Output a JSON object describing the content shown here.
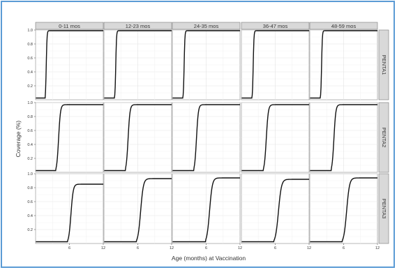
{
  "chart_data": {
    "type": "line",
    "xlabel": "Age (months) at Vaccination",
    "ylabel": "Coverage (%)",
    "x_ticks": [
      "6",
      "12"
    ],
    "y_ticks": [
      "0.2",
      "0.4",
      "0.6",
      "0.8",
      "1.0"
    ],
    "xlim": [
      0,
      12
    ],
    "ylim": [
      0,
      1.0
    ],
    "grid": true,
    "column_facets": [
      "0-11 mos",
      "12-23 mos",
      "24-35 mos",
      "36-47 mos",
      "48-59 mos"
    ],
    "row_facets": [
      "PENTA1",
      "PENTA2",
      "PENTA3"
    ],
    "panels": [
      [
        {
          "onset": 1.7,
          "plateau": 0.99,
          "span": 0.6
        },
        {
          "onset": 1.9,
          "plateau": 0.99,
          "span": 0.6
        },
        {
          "onset": 1.9,
          "plateau": 0.99,
          "span": 0.6
        },
        {
          "onset": 1.9,
          "plateau": 0.99,
          "span": 0.6
        },
        {
          "onset": 1.9,
          "plateau": 0.99,
          "span": 0.6
        }
      ],
      [
        {
          "onset": 3.6,
          "plateau": 0.97,
          "span": 1.5
        },
        {
          "onset": 3.8,
          "plateau": 0.97,
          "span": 1.5
        },
        {
          "onset": 3.8,
          "plateau": 0.97,
          "span": 1.5
        },
        {
          "onset": 3.9,
          "plateau": 0.97,
          "span": 1.6
        },
        {
          "onset": 3.8,
          "plateau": 0.97,
          "span": 1.5
        }
      ],
      [
        {
          "onset": 5.7,
          "plateau": 0.85,
          "span": 1.8
        },
        {
          "onset": 5.8,
          "plateau": 0.93,
          "span": 2.2
        },
        {
          "onset": 5.9,
          "plateau": 0.94,
          "span": 2.2
        },
        {
          "onset": 5.8,
          "plateau": 0.92,
          "span": 2.4
        },
        {
          "onset": 5.8,
          "plateau": 0.94,
          "span": 2.3
        }
      ]
    ]
  }
}
